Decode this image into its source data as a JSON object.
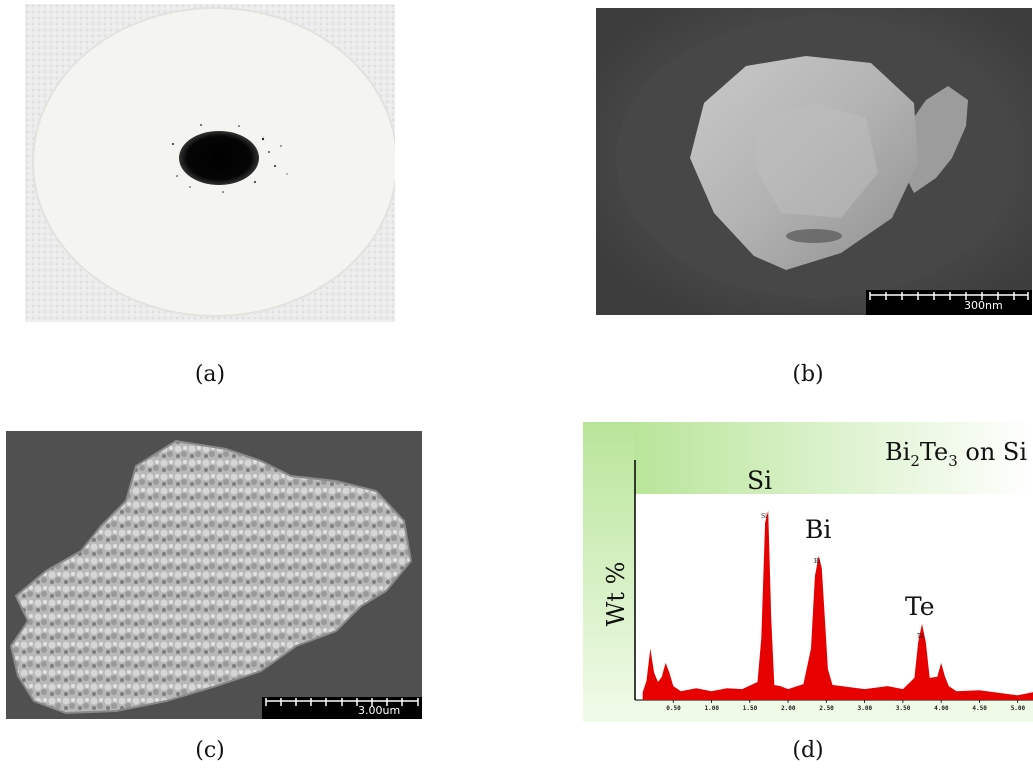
{
  "panels": {
    "a": {
      "caption": "(a)"
    },
    "b": {
      "caption": "(b)",
      "scale_bar": "300nm"
    },
    "c": {
      "caption": "(c)",
      "scale_bar": "3.00um"
    },
    "d": {
      "caption": "(d)",
      "title_main": "Bi",
      "title_sub1": "2",
      "title_mid": "Te",
      "title_sub2": "3",
      "title_tail": " on Si",
      "ylabel": "Wt %",
      "peak_labels_large": [
        "Si",
        "Bi",
        "Te"
      ],
      "peak_labels_small": [
        "Si",
        "Bi",
        "Te"
      ],
      "x_ticks": [
        "0.50",
        "1.00",
        "1.50",
        "2.00",
        "2.50",
        "3.00",
        "3.50",
        "4.00",
        "4.50",
        "5.00"
      ],
      "fill_color": "#e60000",
      "header_gradient": [
        "#b9e59a",
        "#ffffff"
      ]
    }
  },
  "chart_data": {
    "type": "area",
    "title": "Bi2Te3 on Si",
    "xlabel": "",
    "ylabel": "Wt %",
    "xlim": [
      0.0,
      5.2
    ],
    "ylim": [
      0,
      100
    ],
    "x": [
      0.1,
      0.15,
      0.2,
      0.25,
      0.3,
      0.35,
      0.4,
      0.45,
      0.5,
      0.6,
      0.8,
      1.0,
      1.2,
      1.4,
      1.6,
      1.65,
      1.7,
      1.74,
      1.78,
      1.82,
      1.9,
      2.0,
      2.2,
      2.3,
      2.35,
      2.4,
      2.44,
      2.48,
      2.52,
      2.58,
      2.7,
      3.0,
      3.3,
      3.5,
      3.65,
      3.7,
      3.75,
      3.8,
      3.85,
      3.95,
      4.0,
      4.05,
      4.1,
      4.2,
      4.5,
      5.0,
      5.2
    ],
    "series": [
      {
        "values": [
          3,
          10,
          25,
          14,
          8,
          12,
          18,
          14,
          6,
          5,
          5,
          5,
          5,
          6,
          8,
          30,
          86,
          92,
          40,
          8,
          6,
          6,
          7,
          25,
          60,
          70,
          64,
          40,
          15,
          8,
          6,
          6,
          6,
          6,
          10,
          28,
          37,
          28,
          10,
          12,
          18,
          12,
          6,
          5,
          4,
          3,
          3
        ]
      }
    ]
  }
}
